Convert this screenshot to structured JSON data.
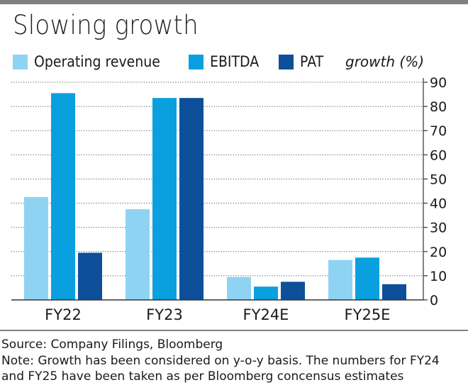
{
  "chart_data": {
    "type": "bar",
    "title": "Slowing growth",
    "unit_label": "growth (%)",
    "categories": [
      "FY22",
      "FY23",
      "FY24E",
      "FY25E"
    ],
    "series": [
      {
        "name": "Operating revenue",
        "color": "#8fd3f2",
        "values": [
          42.5,
          37.5,
          9.5,
          16.5
        ]
      },
      {
        "name": "EBITDA",
        "color": "#0aa0df",
        "values": [
          85.5,
          83.5,
          5.5,
          17.5
        ]
      },
      {
        "name": "PAT",
        "color": "#0e4f9a",
        "values": [
          19.5,
          83.5,
          7.5,
          6.5
        ]
      }
    ],
    "y_ticks": [
      0,
      10,
      20,
      30,
      40,
      50,
      60,
      70,
      80,
      90
    ],
    "ylim": [
      0,
      90
    ],
    "y_axis_side": "right",
    "grid": "dotted horizontal",
    "legend_position": "top-left"
  },
  "footer": {
    "source": "Source: Company Filings, Bloomberg",
    "note": "Note: Growth has been considered on y-o-y basis. The numbers for FY24 and FY25 have been taken as per Bloomberg concensus estimates"
  }
}
